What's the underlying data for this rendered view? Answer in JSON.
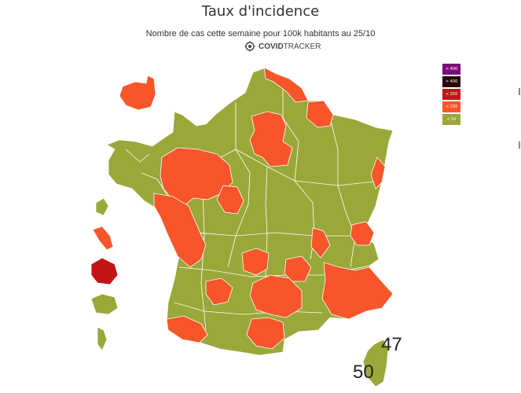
{
  "title": "Taux d'incidence",
  "subtitle": "Nombre de cas cette semaine pour 100k habitants au 25/10",
  "brand": {
    "part1": "COVID",
    "part2": "TRACKER",
    "icon": "covidtracker-logo-icon"
  },
  "legend": [
    {
      "label": "> 400",
      "color": "#7a0d7a"
    },
    {
      "label": "< 400",
      "color": "#2a0808"
    },
    {
      "label": "< 250",
      "color": "#c41414"
    },
    {
      "label": "< 150",
      "color": "#f7552a"
    },
    {
      "label": "< 50",
      "color": "#99a838"
    }
  ],
  "colors": {
    "low": "#99a838",
    "mid": "#f7552a",
    "high": "#c41414",
    "border": "#ffffff"
  },
  "labels": {
    "corse_sud": "50",
    "corse_nord": "47"
  }
}
